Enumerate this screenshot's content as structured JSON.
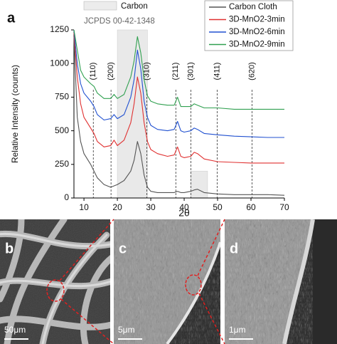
{
  "chart_data": {
    "type": "line",
    "panel_label": "a",
    "x_label": "2θ",
    "y_label": "Relative Intensity (counts)",
    "x": [
      7,
      8,
      9,
      10,
      12,
      13,
      14,
      16,
      18,
      19,
      20,
      22,
      24,
      25,
      26,
      27,
      28,
      29,
      30,
      32,
      35,
      37,
      38,
      39,
      40,
      42,
      43,
      44,
      46,
      50,
      55,
      60,
      65,
      70
    ],
    "series": [
      {
        "name": "Carbon Cloth",
        "color": "#555555",
        "values": [
          1200,
          600,
          420,
          330,
          250,
          200,
          150,
          100,
          80,
          90,
          100,
          130,
          200,
          280,
          420,
          330,
          170,
          80,
          50,
          40,
          40,
          40,
          50,
          40,
          40,
          50,
          60,
          65,
          40,
          30,
          25,
          25,
          25,
          20
        ]
      },
      {
        "name": "3D-MnO2-3min",
        "color": "#e03030",
        "values": [
          1230,
          900,
          700,
          600,
          520,
          480,
          420,
          380,
          390,
          430,
          390,
          430,
          560,
          700,
          900,
          780,
          560,
          420,
          360,
          330,
          310,
          320,
          380,
          310,
          300,
          310,
          340,
          330,
          290,
          270,
          265,
          260,
          260,
          260
        ]
      },
      {
        "name": "3D-MnO2-6min",
        "color": "#2050d0",
        "values": [
          1250,
          1000,
          850,
          780,
          720,
          680,
          620,
          580,
          590,
          620,
          590,
          620,
          750,
          880,
          1100,
          960,
          720,
          600,
          540,
          510,
          500,
          510,
          570,
          500,
          490,
          500,
          520,
          510,
          480,
          470,
          460,
          455,
          450,
          450
        ]
      },
      {
        "name": "3D-MnO2-9min",
        "color": "#30a050",
        "values": [
          1250,
          1100,
          950,
          900,
          850,
          830,
          780,
          740,
          740,
          770,
          740,
          770,
          900,
          1020,
          1200,
          1080,
          880,
          760,
          720,
          700,
          690,
          690,
          750,
          680,
          680,
          680,
          700,
          690,
          670,
          670,
          660,
          660,
          660,
          660
        ]
      }
    ],
    "xlim": [
      7,
      70
    ],
    "ylim": [
      0,
      1250
    ],
    "xticks": [
      10,
      20,
      30,
      40,
      50,
      60,
      70
    ],
    "yticks": [
      0,
      250,
      500,
      750,
      1000,
      1250
    ],
    "shaded_ranges": [
      [
        20,
        29
      ],
      [
        42,
        47
      ]
    ],
    "shade_legend": "Carbon",
    "reference": "JCPDS 00-42-1348",
    "peaks": [
      {
        "label": "(110)",
        "x": 12.8
      },
      {
        "label": "(200)",
        "x": 18.1
      },
      {
        "label": "(310)",
        "x": 28.8
      },
      {
        "label": "(211)",
        "x": 37.5
      },
      {
        "label": "(301)",
        "x": 42.0
      },
      {
        "label": "(411)",
        "x": 49.9
      },
      {
        "label": "(620)",
        "x": 60.3
      }
    ]
  },
  "images": [
    {
      "label": "b",
      "scale_bar": "50μm"
    },
    {
      "label": "c",
      "scale_bar": "5μm"
    },
    {
      "label": "d",
      "scale_bar": "1μm"
    }
  ]
}
